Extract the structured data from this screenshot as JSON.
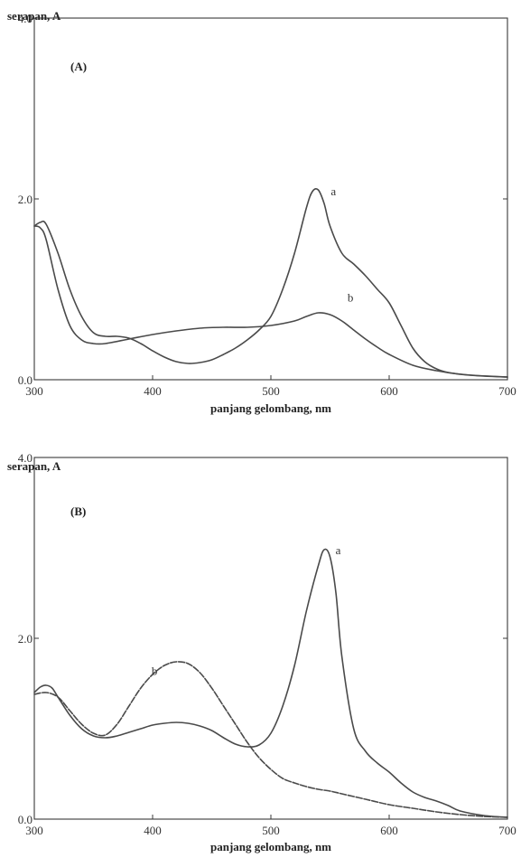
{
  "chart_data": [
    {
      "type": "line",
      "panel_label": "(A)",
      "ylabel": "serapan, A",
      "xlabel": "panjang gelombang, nm",
      "xlim": [
        300,
        700
      ],
      "ylim": [
        0,
        4
      ],
      "x_ticks": [
        300,
        400,
        500,
        600,
        700
      ],
      "y_ticks": [
        "0.0",
        "2.0",
        "4.0"
      ],
      "y_tick_values": [
        0,
        2,
        4
      ],
      "grid": false,
      "series": [
        {
          "name": "a",
          "points": [
            [
              300,
              1.7
            ],
            [
              305,
              1.74
            ],
            [
              310,
              1.72
            ],
            [
              320,
              1.4
            ],
            [
              330,
              1.0
            ],
            [
              340,
              0.7
            ],
            [
              350,
              0.52
            ],
            [
              360,
              0.48
            ],
            [
              370,
              0.48
            ],
            [
              380,
              0.46
            ],
            [
              390,
              0.4
            ],
            [
              400,
              0.32
            ],
            [
              410,
              0.25
            ],
            [
              420,
              0.2
            ],
            [
              430,
              0.18
            ],
            [
              440,
              0.19
            ],
            [
              450,
              0.22
            ],
            [
              460,
              0.28
            ],
            [
              470,
              0.35
            ],
            [
              480,
              0.44
            ],
            [
              490,
              0.55
            ],
            [
              500,
              0.7
            ],
            [
              510,
              1.0
            ],
            [
              520,
              1.4
            ],
            [
              530,
              1.9
            ],
            [
              535,
              2.08
            ],
            [
              540,
              2.1
            ],
            [
              545,
              1.95
            ],
            [
              550,
              1.7
            ],
            [
              560,
              1.4
            ],
            [
              570,
              1.28
            ],
            [
              580,
              1.15
            ],
            [
              590,
              1.0
            ],
            [
              600,
              0.85
            ],
            [
              610,
              0.6
            ],
            [
              620,
              0.35
            ],
            [
              630,
              0.2
            ],
            [
              640,
              0.12
            ],
            [
              650,
              0.08
            ],
            [
              670,
              0.05
            ],
            [
              700,
              0.03
            ]
          ]
        },
        {
          "name": "b",
          "points": [
            [
              300,
              1.7
            ],
            [
              305,
              1.68
            ],
            [
              310,
              1.55
            ],
            [
              320,
              1.0
            ],
            [
              330,
              0.6
            ],
            [
              340,
              0.44
            ],
            [
              350,
              0.4
            ],
            [
              360,
              0.4
            ],
            [
              380,
              0.45
            ],
            [
              400,
              0.5
            ],
            [
              420,
              0.54
            ],
            [
              440,
              0.57
            ],
            [
              460,
              0.58
            ],
            [
              480,
              0.58
            ],
            [
              500,
              0.6
            ],
            [
              520,
              0.65
            ],
            [
              530,
              0.7
            ],
            [
              540,
              0.74
            ],
            [
              550,
              0.72
            ],
            [
              560,
              0.65
            ],
            [
              570,
              0.55
            ],
            [
              580,
              0.45
            ],
            [
              590,
              0.36
            ],
            [
              600,
              0.28
            ],
            [
              620,
              0.16
            ],
            [
              640,
              0.1
            ],
            [
              660,
              0.06
            ],
            [
              680,
              0.04
            ],
            [
              700,
              0.03
            ]
          ]
        }
      ]
    },
    {
      "type": "line",
      "panel_label": "(B)",
      "ylabel": "serapan, A",
      "xlabel": "panjang gelombang, nm",
      "xlim": [
        300,
        700
      ],
      "ylim": [
        0,
        4
      ],
      "x_ticks": [
        300,
        400,
        500,
        600,
        700
      ],
      "y_ticks": [
        "0.0",
        "2.0",
        "4.0"
      ],
      "y_tick_values": [
        0,
        2,
        4
      ],
      "grid": false,
      "series": [
        {
          "name": "a",
          "points": [
            [
              300,
              1.4
            ],
            [
              305,
              1.46
            ],
            [
              310,
              1.48
            ],
            [
              315,
              1.45
            ],
            [
              320,
              1.35
            ],
            [
              330,
              1.15
            ],
            [
              340,
              1.0
            ],
            [
              350,
              0.92
            ],
            [
              360,
              0.9
            ],
            [
              370,
              0.92
            ],
            [
              380,
              0.96
            ],
            [
              390,
              1.0
            ],
            [
              400,
              1.04
            ],
            [
              410,
              1.06
            ],
            [
              420,
              1.07
            ],
            [
              430,
              1.06
            ],
            [
              440,
              1.03
            ],
            [
              450,
              0.98
            ],
            [
              460,
              0.9
            ],
            [
              470,
              0.83
            ],
            [
              480,
              0.8
            ],
            [
              490,
              0.82
            ],
            [
              500,
              0.95
            ],
            [
              510,
              1.25
            ],
            [
              520,
              1.7
            ],
            [
              530,
              2.3
            ],
            [
              540,
              2.8
            ],
            [
              545,
              2.98
            ],
            [
              550,
              2.9
            ],
            [
              555,
              2.5
            ],
            [
              560,
              1.8
            ],
            [
              570,
              1.0
            ],
            [
              580,
              0.75
            ],
            [
              590,
              0.62
            ],
            [
              600,
              0.52
            ],
            [
              610,
              0.4
            ],
            [
              620,
              0.3
            ],
            [
              630,
              0.24
            ],
            [
              640,
              0.2
            ],
            [
              650,
              0.15
            ],
            [
              660,
              0.09
            ],
            [
              680,
              0.04
            ],
            [
              700,
              0.02
            ]
          ]
        },
        {
          "name": "b",
          "points": [
            [
              300,
              1.38
            ],
            [
              310,
              1.4
            ],
            [
              320,
              1.35
            ],
            [
              330,
              1.2
            ],
            [
              340,
              1.05
            ],
            [
              350,
              0.95
            ],
            [
              360,
              0.93
            ],
            [
              370,
              1.05
            ],
            [
              380,
              1.25
            ],
            [
              390,
              1.45
            ],
            [
              400,
              1.6
            ],
            [
              410,
              1.7
            ],
            [
              420,
              1.74
            ],
            [
              430,
              1.72
            ],
            [
              440,
              1.62
            ],
            [
              450,
              1.45
            ],
            [
              460,
              1.25
            ],
            [
              470,
              1.05
            ],
            [
              480,
              0.85
            ],
            [
              490,
              0.68
            ],
            [
              500,
              0.55
            ],
            [
              510,
              0.45
            ],
            [
              520,
              0.4
            ],
            [
              530,
              0.36
            ],
            [
              540,
              0.33
            ],
            [
              550,
              0.31
            ],
            [
              560,
              0.28
            ],
            [
              580,
              0.22
            ],
            [
              600,
              0.16
            ],
            [
              620,
              0.12
            ],
            [
              640,
              0.08
            ],
            [
              660,
              0.05
            ],
            [
              680,
              0.03
            ],
            [
              700,
              0.02
            ]
          ]
        }
      ]
    }
  ]
}
